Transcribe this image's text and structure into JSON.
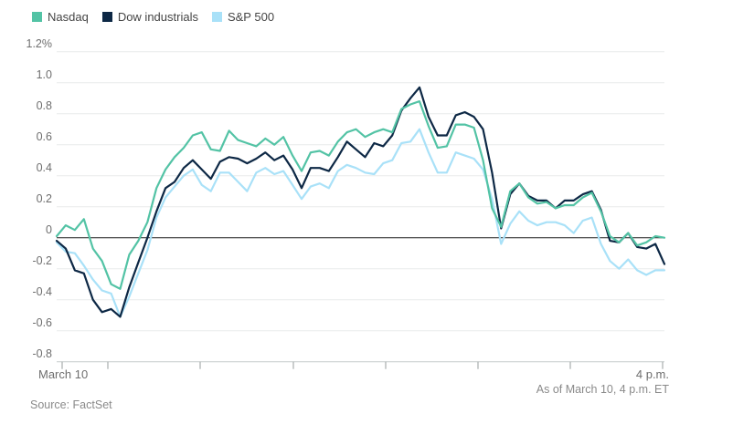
{
  "footer": {
    "source": "Source: FactSet",
    "as_of": "As of March 10, 4 p.m. ET"
  },
  "colors": {
    "background": "#ffffff",
    "grid": "#e9ebeb",
    "zero_line": "#1c1c1c",
    "axis_line": "#c6cbcb",
    "tick": "#a8adad",
    "label_text": "#6e6e6e",
    "muted_text": "#8a8a8a",
    "legend_text": "#454545"
  },
  "chart_data": {
    "type": "line",
    "title": "",
    "unit": "percent change, intraday",
    "x_axis": {
      "start_label": "March 10",
      "end_label": "4 p.m.",
      "span": "9:30 a.m. to 4 p.m. ET, points every ~6 min, hourly tick marks"
    },
    "ylim": [
      -0.8,
      1.2
    ],
    "ytick_values": [
      1.2,
      1.0,
      0.8,
      0.6,
      0.4,
      0.2,
      0,
      -0.2,
      -0.4,
      -0.6,
      -0.8
    ],
    "ytick_labels": [
      "1.2%",
      "1.0",
      "0.8",
      "0.6",
      "0.4",
      "0.2",
      "0",
      "-0.2",
      "-0.4",
      "-0.6",
      "-0.8"
    ],
    "grid": "horizontal",
    "zero_line": true,
    "legend_position": "top-left",
    "series": [
      {
        "name": "Nasdaq",
        "color": "#53c3a5",
        "values": [
          0.01,
          0.08,
          0.05,
          0.12,
          -0.07,
          -0.15,
          -0.3,
          -0.33,
          -0.11,
          -0.02,
          0.1,
          0.32,
          0.44,
          0.52,
          0.58,
          0.66,
          0.68,
          0.57,
          0.56,
          0.69,
          0.63,
          0.61,
          0.59,
          0.64,
          0.6,
          0.65,
          0.53,
          0.43,
          0.55,
          0.56,
          0.53,
          0.62,
          0.68,
          0.7,
          0.65,
          0.68,
          0.7,
          0.68,
          0.83,
          0.86,
          0.88,
          0.72,
          0.58,
          0.59,
          0.73,
          0.73,
          0.71,
          0.5,
          0.19,
          0.07,
          0.3,
          0.35,
          0.26,
          0.22,
          0.23,
          0.19,
          0.21,
          0.21,
          0.26,
          0.29,
          0.17,
          0.01,
          -0.03,
          0.03,
          -0.05,
          -0.03,
          0.01,
          0.0
        ]
      },
      {
        "name": "Dow industrials",
        "color": "#0d2845",
        "values": [
          -0.02,
          -0.07,
          -0.21,
          -0.23,
          -0.4,
          -0.48,
          -0.46,
          -0.51,
          -0.32,
          -0.16,
          0.0,
          0.17,
          0.32,
          0.36,
          0.45,
          0.5,
          0.44,
          0.38,
          0.49,
          0.52,
          0.51,
          0.48,
          0.51,
          0.55,
          0.5,
          0.53,
          0.44,
          0.32,
          0.45,
          0.45,
          0.43,
          0.52,
          0.62,
          0.57,
          0.52,
          0.61,
          0.59,
          0.66,
          0.82,
          0.9,
          0.97,
          0.78,
          0.66,
          0.66,
          0.79,
          0.81,
          0.78,
          0.7,
          0.42,
          0.06,
          0.28,
          0.35,
          0.27,
          0.24,
          0.24,
          0.19,
          0.24,
          0.24,
          0.28,
          0.3,
          0.18,
          -0.02,
          -0.03,
          0.03,
          -0.06,
          -0.07,
          -0.04,
          -0.17
        ]
      },
      {
        "name": "S&P 500",
        "color": "#a9e1f8",
        "values": [
          -0.03,
          -0.09,
          -0.1,
          -0.18,
          -0.27,
          -0.34,
          -0.36,
          -0.51,
          -0.38,
          -0.23,
          -0.08,
          0.13,
          0.26,
          0.33,
          0.4,
          0.44,
          0.34,
          0.3,
          0.42,
          0.42,
          0.36,
          0.3,
          0.42,
          0.45,
          0.41,
          0.43,
          0.34,
          0.25,
          0.33,
          0.35,
          0.32,
          0.43,
          0.47,
          0.45,
          0.42,
          0.41,
          0.48,
          0.5,
          0.61,
          0.62,
          0.7,
          0.55,
          0.42,
          0.42,
          0.55,
          0.53,
          0.51,
          0.44,
          0.25,
          -0.04,
          0.09,
          0.17,
          0.11,
          0.08,
          0.1,
          0.1,
          0.08,
          0.03,
          0.11,
          0.13,
          -0.04,
          -0.15,
          -0.2,
          -0.14,
          -0.21,
          -0.24,
          -0.21,
          -0.21
        ]
      }
    ]
  }
}
